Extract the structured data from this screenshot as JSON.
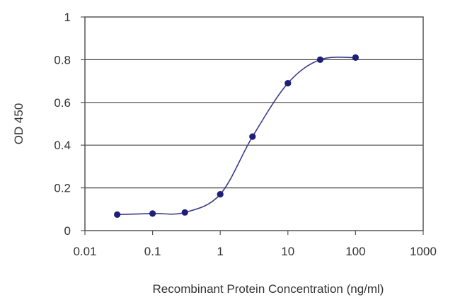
{
  "chart_data": {
    "type": "line",
    "title": "",
    "xlabel": "Recombinant Protein Concentration (ng/ml)",
    "ylabel": "OD 450",
    "x_scale": "log",
    "xlim": [
      0.01,
      1000
    ],
    "ylim": [
      0,
      1
    ],
    "x_ticks": [
      "0.01",
      "0.1",
      "1",
      "10",
      "100",
      "1000"
    ],
    "y_ticks": [
      "0",
      "0.2",
      "0.4",
      "0.6",
      "0.8",
      "1"
    ],
    "grid": "horizontal",
    "legend": "none",
    "series": [
      {
        "points": [
          {
            "x": 0.03,
            "y": 0.075
          },
          {
            "x": 0.1,
            "y": 0.08
          },
          {
            "x": 0.3,
            "y": 0.085
          },
          {
            "x": 1,
            "y": 0.17
          },
          {
            "x": 3,
            "y": 0.44
          },
          {
            "x": 10,
            "y": 0.69
          },
          {
            "x": 30,
            "y": 0.8
          },
          {
            "x": 100,
            "y": 0.81
          }
        ],
        "color": "#1f1f7a"
      }
    ]
  }
}
